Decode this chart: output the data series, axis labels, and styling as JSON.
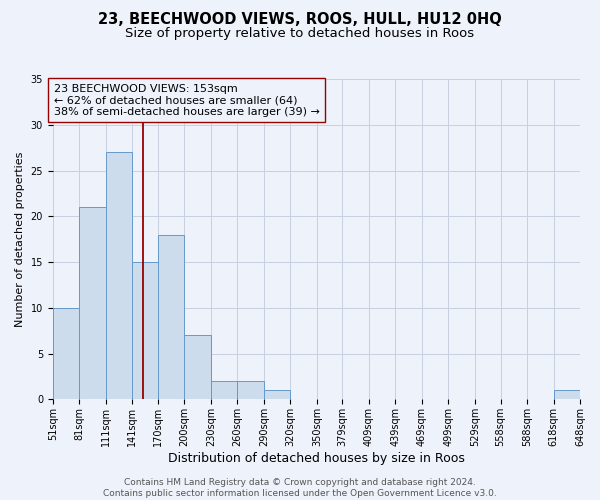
{
  "title": "23, BEECHWOOD VIEWS, ROOS, HULL, HU12 0HQ",
  "subtitle": "Size of property relative to detached houses in Roos",
  "xlabel": "Distribution of detached houses by size in Roos",
  "ylabel": "Number of detached properties",
  "bin_edges": [
    51,
    81,
    111,
    141,
    170,
    200,
    230,
    260,
    290,
    320,
    350,
    379,
    409,
    439,
    469,
    499,
    529,
    558,
    588,
    618,
    648
  ],
  "bar_heights": [
    10,
    21,
    27,
    15,
    18,
    7,
    2,
    2,
    1,
    0,
    0,
    0,
    0,
    0,
    0,
    0,
    0,
    0,
    0,
    1
  ],
  "bar_color": "#ccdcec",
  "bar_edgecolor": "#6699cc",
  "property_size": 153,
  "vline_color": "#990000",
  "annotation_line1": "23 BEECHWOOD VIEWS: 153sqm",
  "annotation_line2": "← 62% of detached houses are smaller (64)",
  "annotation_line3": "38% of semi-detached houses are larger (39) →",
  "annotation_box_edgecolor": "#990000",
  "annotation_box_facecolor": "#eef2fa",
  "ylim": [
    0,
    35
  ],
  "yticks": [
    0,
    5,
    10,
    15,
    20,
    25,
    30,
    35
  ],
  "background_color": "#eef2fa",
  "grid_color": "#c8d0e0",
  "footer_text": "Contains HM Land Registry data © Crown copyright and database right 2024.\nContains public sector information licensed under the Open Government Licence v3.0.",
  "title_fontsize": 10.5,
  "subtitle_fontsize": 9.5,
  "xlabel_fontsize": 9,
  "ylabel_fontsize": 8,
  "tick_fontsize": 7,
  "annotation_fontsize": 8,
  "footer_fontsize": 6.5
}
